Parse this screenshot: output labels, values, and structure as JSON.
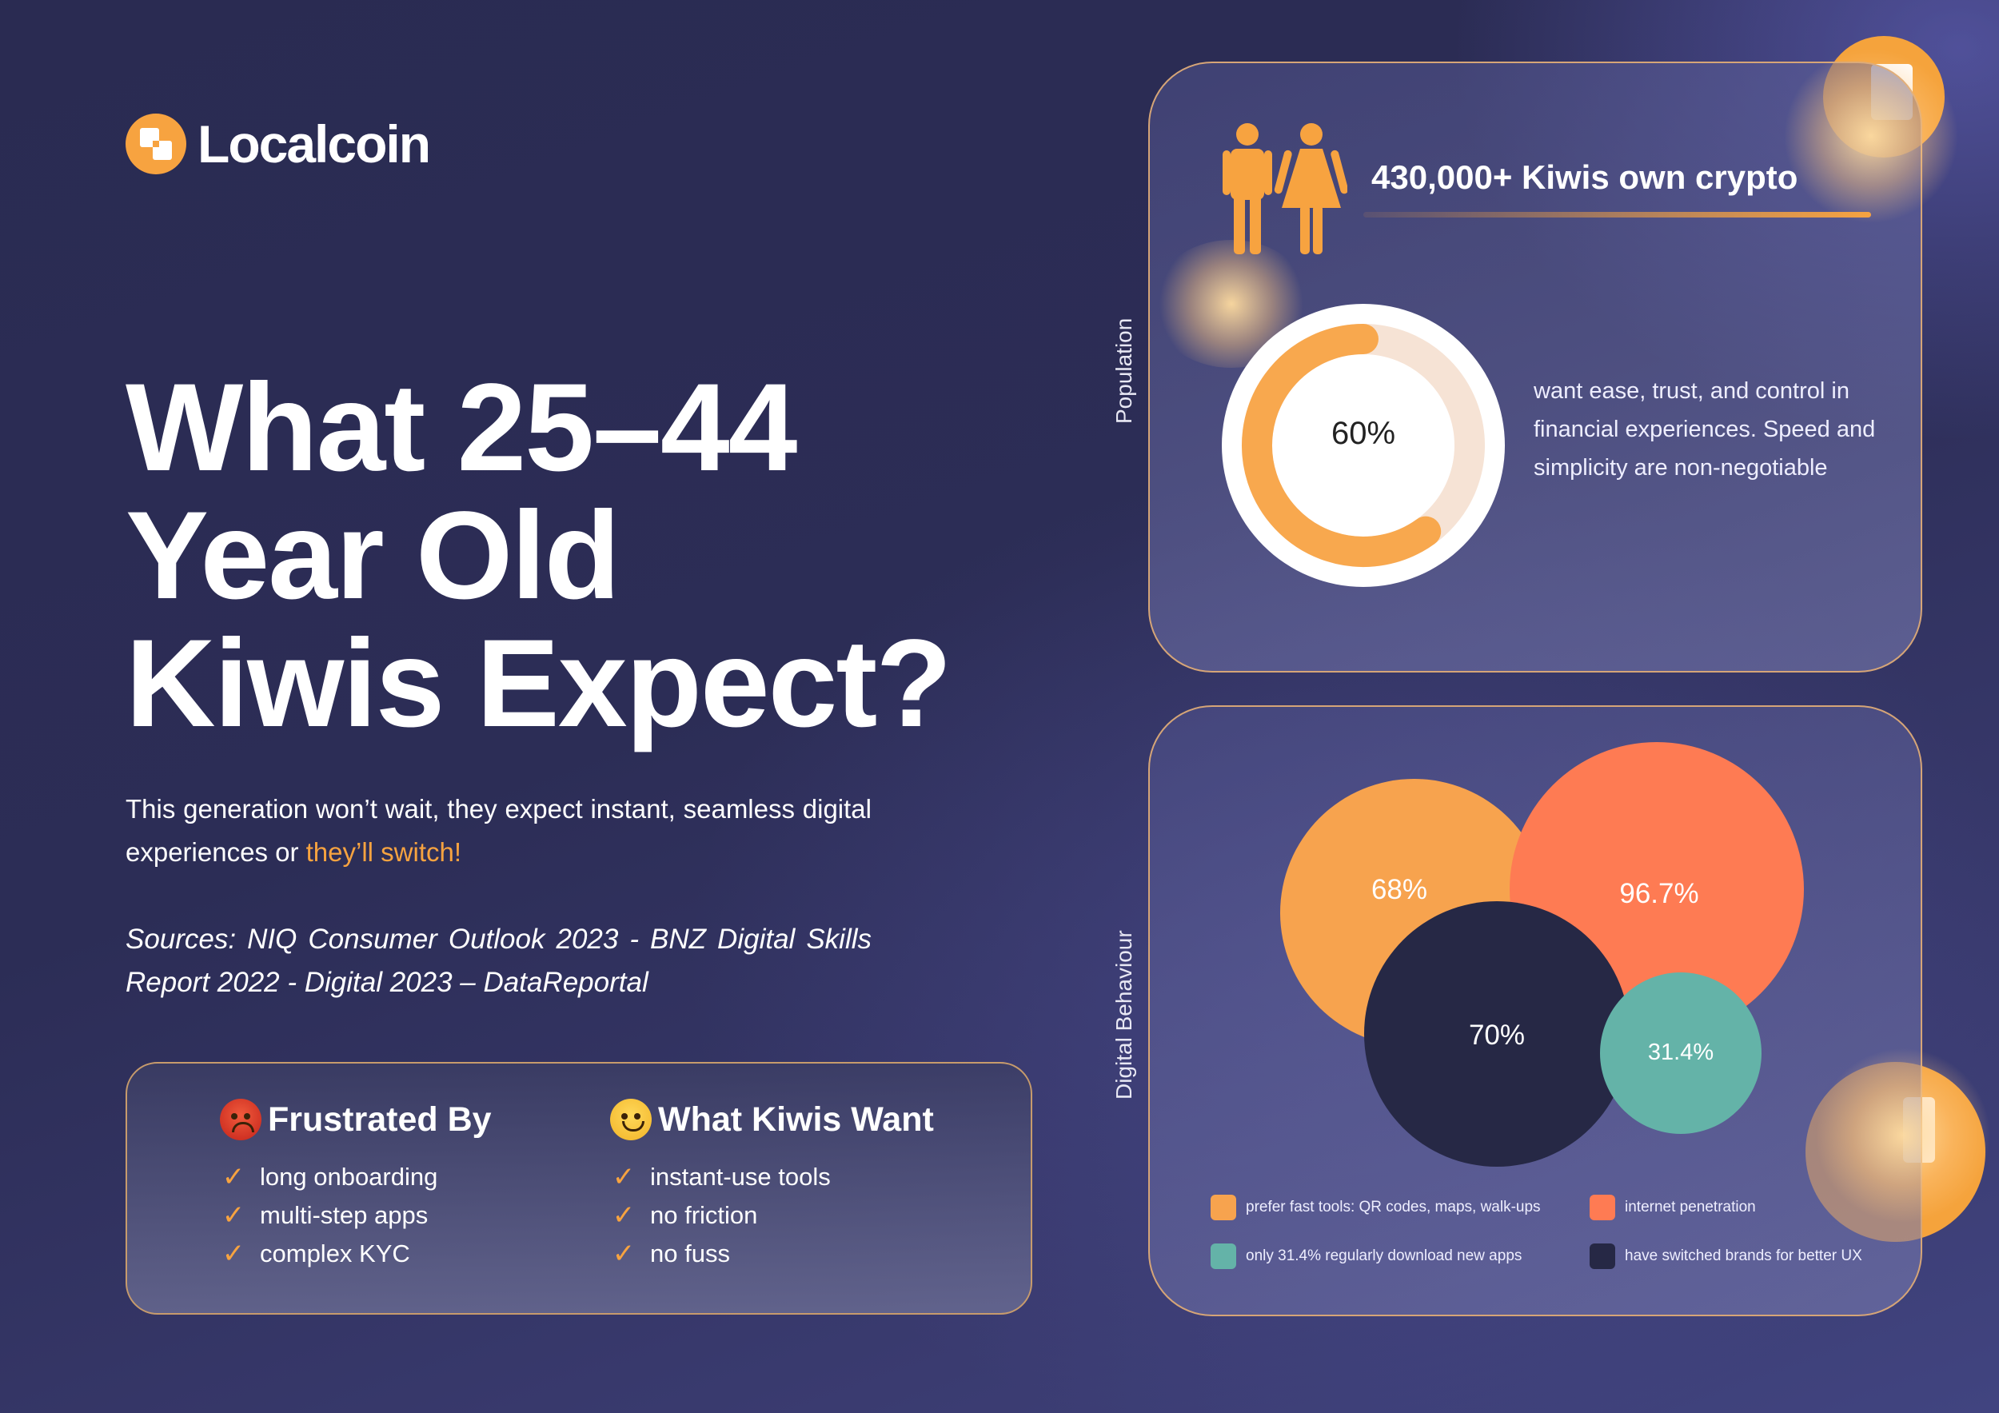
{
  "brand": {
    "name": "Localcoin",
    "accent": "#f7a340"
  },
  "headline": {
    "lines": [
      "What 25–44",
      "Year Old",
      "Kiwis Expect?"
    ]
  },
  "intro": {
    "text": "This generation won’t wait, they expect instant, seamless digital experiences or ",
    "accent_text": "they’ll switch!"
  },
  "sources": "Sources: NIQ Consumer Outlook 2023 - BNZ Digital Skills Report 2022 - Digital 2023 – DataReportal",
  "frustrated": {
    "title": "Frustrated By",
    "icon": "angry-face-icon",
    "items": [
      "long onboarding",
      "multi-step apps",
      "complex KYC"
    ]
  },
  "wants": {
    "title": "What Kiwis Want",
    "icon": "smiling-face-icon",
    "items": [
      "instant-use tools",
      "no friction",
      "no fuss"
    ]
  },
  "population": {
    "side_label": "Population",
    "headline": "430,000+ Kiwis own crypto",
    "icon": "people-icon",
    "percent_label": "60%",
    "percent_value": 60,
    "description": "want ease, trust, and control in financial experiences. Speed and simplicity are non-negotiable"
  },
  "digital": {
    "side_label": "Digital Behaviour",
    "bubbles": [
      {
        "label": "68%",
        "value": 68,
        "color": "#f7a34e"
      },
      {
        "label": "96.7%",
        "value": 96.7,
        "color": "#fe7b53"
      },
      {
        "label": "70%",
        "value": 70,
        "color": "#262845"
      },
      {
        "label": "31.4%",
        "value": 31.4,
        "color": "#64b3a8"
      }
    ],
    "legend": [
      {
        "text": "prefer fast tools: QR codes, maps, walk-ups",
        "color": "#f7a34e"
      },
      {
        "text": "internet penetration",
        "color": "#fe7b53"
      },
      {
        "text": "only 31.4% regularly download new apps",
        "color": "#64b3a8"
      },
      {
        "text": "have switched brands for better UX",
        "color": "#262845"
      }
    ]
  }
}
